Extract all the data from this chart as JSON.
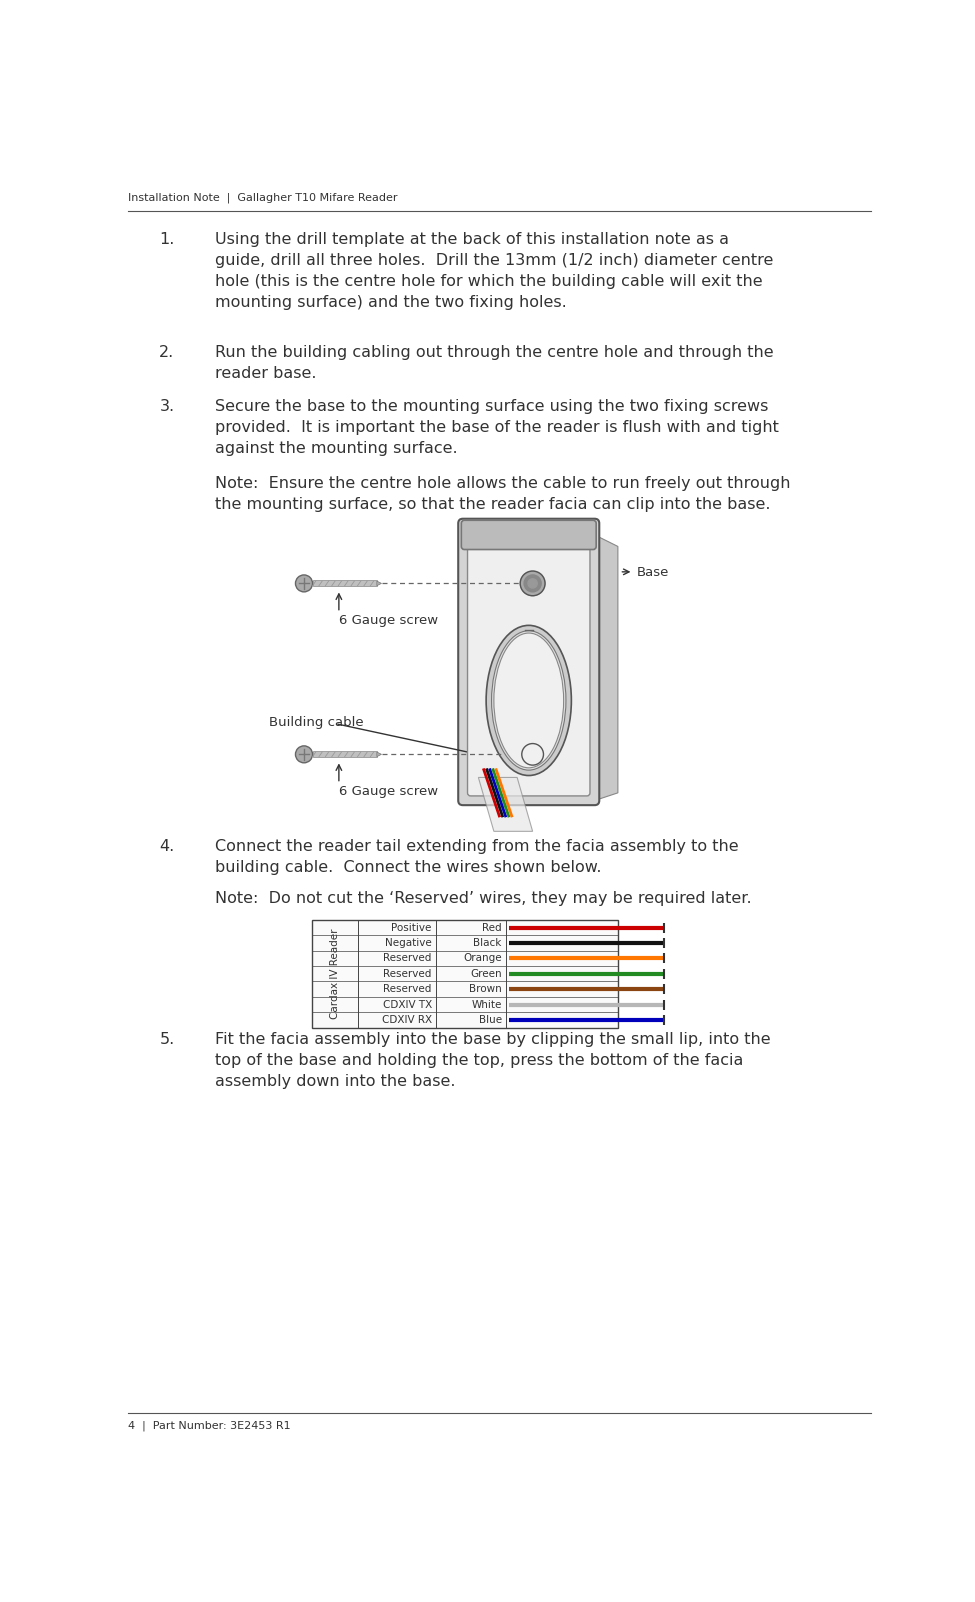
{
  "bg_color": "#ffffff",
  "header_text": "Installation Note  |  Gallagher T10 Mifare Reader",
  "footer_text": "4  |  Part Number: 3E2453 R1",
  "items": [
    {
      "num": "1.",
      "text": "Using the drill template at the back of this installation note as a\nguide, drill all three holes.  Drill the 13mm (1/2 inch) diameter centre\nhole (this is the centre hole for which the building cable will exit the\nmounting surface) and the two fixing holes."
    },
    {
      "num": "2.",
      "text": "Run the building cabling out through the centre hole and through the\nreader base."
    },
    {
      "num": "3.",
      "text": "Secure the base to the mounting surface using the two fixing screws\nprovided.  It is important the base of the reader is flush with and tight\nagainst the mounting surface."
    }
  ],
  "note3": "Note:  Ensure the centre hole allows the cable to run freely out through\nthe mounting surface, so that the reader facia can clip into the base.",
  "diagram_labels": {
    "base": "Base",
    "screw_top": "6 Gauge screw",
    "cable": "Building cable",
    "screw_bottom": "6 Gauge screw"
  },
  "item4_text": "Connect the reader tail extending from the facia assembly to the\nbuilding cable.  Connect the wires shown below.",
  "note4": "Note:  Do not cut the ‘Reserved’ wires, they may be required later.",
  "wire_rows": [
    [
      "Positive",
      "Red"
    ],
    [
      "Negative",
      "Black"
    ],
    [
      "Reserved",
      "Orange"
    ],
    [
      "Reserved",
      "Green"
    ],
    [
      "Reserved",
      "Brown"
    ],
    [
      "CDXIV TX",
      "White"
    ],
    [
      "CDXIV RX",
      "Blue"
    ]
  ],
  "wire_colors": [
    "#cc0000",
    "#111111",
    "#ff7700",
    "#228B22",
    "#8B4513",
    "#e8e8e8",
    "#0000bb"
  ],
  "wire_label": "Cardax IV Reader",
  "item5_text": "Fit the facia assembly into the base by clipping the small lip, into the\ntop of the base and holding the top, press the bottom of the facia\nassembly down into the base."
}
